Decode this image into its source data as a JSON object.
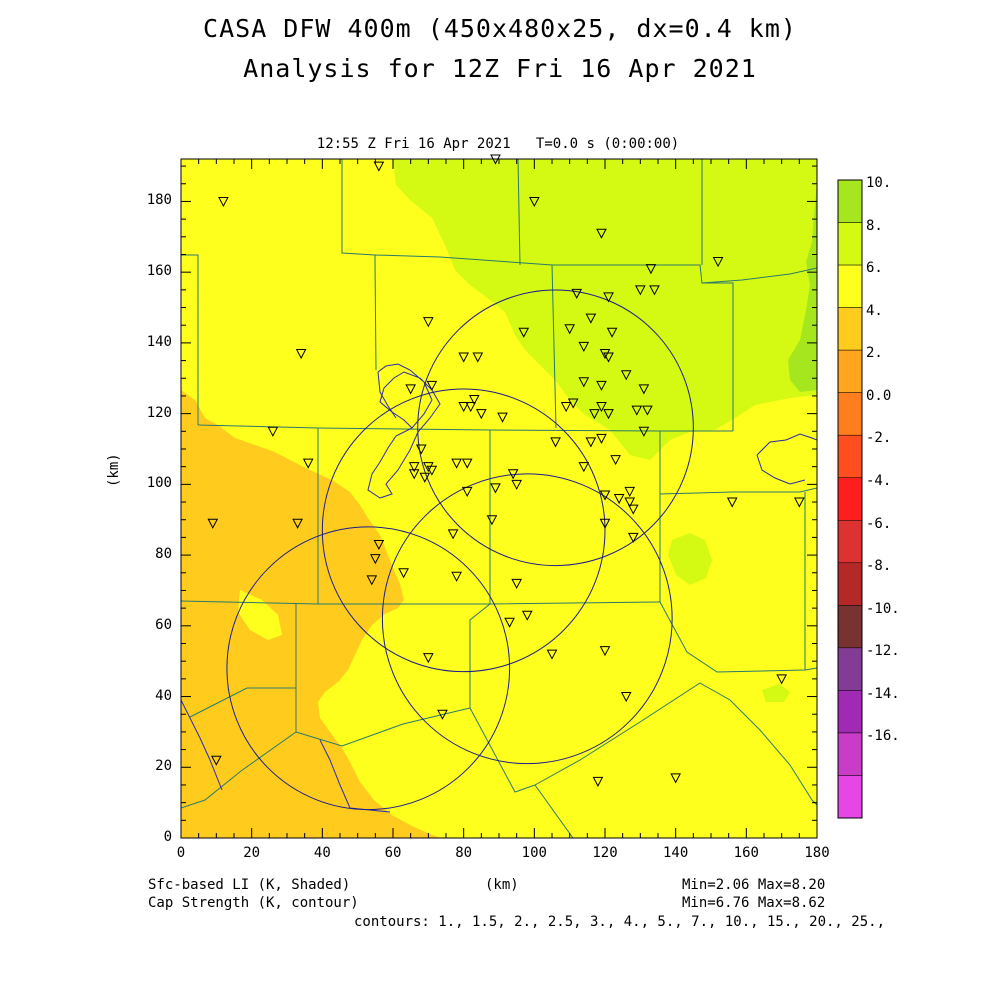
{
  "header": {
    "title_line1": "CASA DFW 400m (450x480x25, dx=0.4 km)",
    "title_line2": "Analysis for 12Z Fri 16 Apr 2021",
    "time_label": "12:55 Z Fri 16 Apr 2021   T=0.0 s (0:00:00)"
  },
  "axes": {
    "x_label": "(km)",
    "y_label": "(km)",
    "x_ticks": [
      "0",
      "20",
      "40",
      "60",
      "80",
      "100",
      "120",
      "140",
      "160",
      "180"
    ],
    "y_ticks": [
      "0",
      "20",
      "40",
      "60",
      "80",
      "100",
      "120",
      "140",
      "160",
      "180"
    ]
  },
  "colorbar": {
    "labels": [
      "10.",
      "8.",
      "6.",
      "4.",
      "2.",
      "0.0",
      "-2.",
      "-4.",
      "-6.",
      "-8.",
      "-10.",
      "-12.",
      "-14.",
      "-16."
    ],
    "colors": [
      "#a6e61e",
      "#d4fa14",
      "#ffff1e",
      "#ffcc1e",
      "#ffa51e",
      "#ff7f1e",
      "#ff4f1e",
      "#ff1e1e",
      "#de3232",
      "#b42828",
      "#783232",
      "#823c96",
      "#a02ab4",
      "#c83cc8",
      "#e646e6"
    ]
  },
  "footer": {
    "left_line1": "Sfc-based LI (K, Shaded)",
    "left_line2": "Cap Strength (K, contour)",
    "center": "(km)",
    "right_line1": "Min=2.06 Max=8.20",
    "right_line2": "Min=6.76 Max=8.62",
    "contours": "contours: 1., 1.5, 2., 2.5, 3., 4., 5., 7., 10., 15., 20., 25.,"
  },
  "shading_colors": {
    "yellow": "#ffff1e",
    "yellow_green": "#d4fa14",
    "orange": "#ffcc1e",
    "light_green": "#a6e61e"
  },
  "map_data": {
    "x_range_km": [
      0,
      180
    ],
    "y_range_km": [
      0,
      192
    ],
    "radar_rings_km": [
      {
        "cx": 53,
        "cy": 48,
        "r": 40
      },
      {
        "cx": 80,
        "cy": 87,
        "r": 40
      },
      {
        "cx": 106,
        "cy": 116,
        "r": 39
      },
      {
        "cx": 98,
        "cy": 62,
        "r": 41
      }
    ],
    "stations_km": [
      [
        56,
        190
      ],
      [
        89,
        192
      ],
      [
        12,
        180
      ],
      [
        100,
        180
      ],
      [
        119,
        171
      ],
      [
        152,
        163
      ],
      [
        133,
        161
      ],
      [
        112,
        154
      ],
      [
        121,
        153
      ],
      [
        130,
        155
      ],
      [
        134,
        155
      ],
      [
        70,
        146
      ],
      [
        97,
        143
      ],
      [
        110,
        144
      ],
      [
        116,
        147
      ],
      [
        122,
        143
      ],
      [
        34,
        137
      ],
      [
        80,
        136
      ],
      [
        84,
        136
      ],
      [
        114,
        139
      ],
      [
        120,
        137
      ],
      [
        121,
        136
      ],
      [
        126,
        131
      ],
      [
        65,
        127
      ],
      [
        71,
        128
      ],
      [
        114,
        129
      ],
      [
        119,
        128
      ],
      [
        131,
        127
      ],
      [
        83,
        124
      ],
      [
        82,
        122
      ],
      [
        80,
        122
      ],
      [
        85,
        120
      ],
      [
        91,
        119
      ],
      [
        109,
        122
      ],
      [
        111,
        123
      ],
      [
        117,
        120
      ],
      [
        119,
        122
      ],
      [
        121,
        120
      ],
      [
        129,
        121
      ],
      [
        132,
        121
      ],
      [
        26,
        115
      ],
      [
        131,
        115
      ],
      [
        106,
        112
      ],
      [
        116,
        112
      ],
      [
        119,
        113
      ],
      [
        68,
        110
      ],
      [
        123,
        107
      ],
      [
        36,
        106
      ],
      [
        66,
        105
      ],
      [
        70,
        105
      ],
      [
        71,
        104
      ],
      [
        78,
        106
      ],
      [
        81,
        106
      ],
      [
        114,
        105
      ],
      [
        66,
        103
      ],
      [
        69,
        102
      ],
      [
        94,
        103
      ],
      [
        95,
        100
      ],
      [
        89,
        99
      ],
      [
        81,
        98
      ],
      [
        120,
        97
      ],
      [
        124,
        96
      ],
      [
        127,
        98
      ],
      [
        127,
        95
      ],
      [
        128,
        93
      ],
      [
        156,
        95
      ],
      [
        175,
        95
      ],
      [
        9,
        89
      ],
      [
        33,
        89
      ],
      [
        88,
        90
      ],
      [
        120,
        89
      ],
      [
        77,
        86
      ],
      [
        128,
        85
      ],
      [
        56,
        83
      ],
      [
        55,
        79
      ],
      [
        63,
        75
      ],
      [
        54,
        73
      ],
      [
        78,
        74
      ],
      [
        95,
        72
      ],
      [
        98,
        63
      ],
      [
        93,
        61
      ],
      [
        105,
        52
      ],
      [
        120,
        53
      ],
      [
        70,
        51
      ],
      [
        126,
        40
      ],
      [
        170,
        45
      ],
      [
        74,
        35
      ],
      [
        10,
        22
      ],
      [
        118,
        16
      ],
      [
        140,
        17
      ]
    ]
  }
}
